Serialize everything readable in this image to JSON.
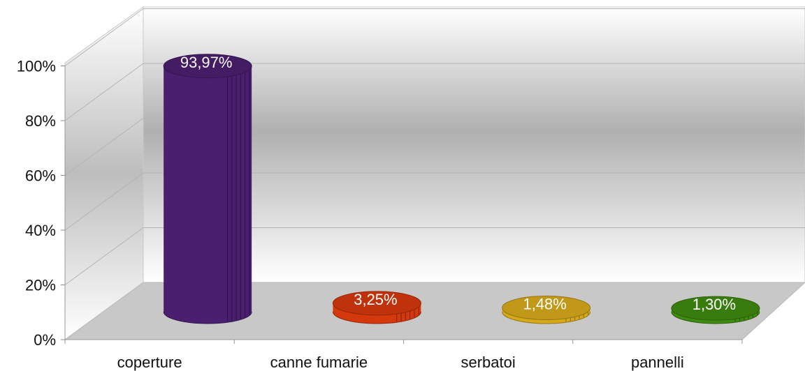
{
  "chart_data": {
    "type": "bar",
    "style": "3d-cylinder",
    "categories": [
      "coperture",
      "canne fumarie",
      "serbatoi",
      "pannelli"
    ],
    "values": [
      93.97,
      3.25,
      1.48,
      1.3
    ],
    "data_labels": [
      "93,97%",
      "3,25%",
      "1,48%",
      "1,30%"
    ],
    "colors": [
      "#4a1f6f",
      "#d4380d",
      "#d6a91a",
      "#3f8a10"
    ],
    "y_ticks": [
      "0%",
      "20%",
      "40%",
      "60%",
      "80%",
      "100%"
    ],
    "ylim": [
      0,
      100
    ],
    "grid": true,
    "legend": "none"
  }
}
